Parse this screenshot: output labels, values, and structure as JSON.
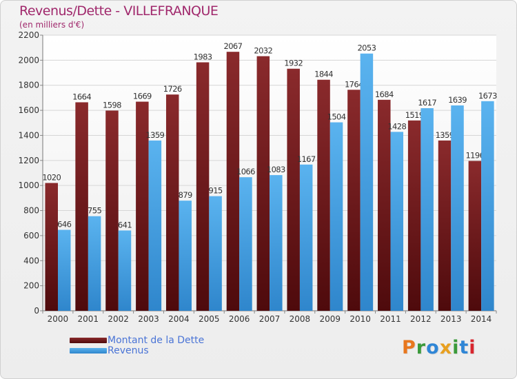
{
  "title": "Revenus/Dette - VILLEFRANQUE",
  "subtitle": "(en milliers d'€)",
  "chart_data": {
    "type": "bar",
    "categories": [
      "2000",
      "2001",
      "2002",
      "2003",
      "2004",
      "2005",
      "2006",
      "2007",
      "2008",
      "2009",
      "2010",
      "2011",
      "2012",
      "2013",
      "2014"
    ],
    "series": [
      {
        "name": "Montant de la Dette",
        "values": [
          1020,
          1664,
          1598,
          1669,
          1726,
          1983,
          2067,
          2032,
          1932,
          1844,
          1764,
          1684,
          1519,
          1359,
          1196
        ],
        "color": "#7a1d1f"
      },
      {
        "name": "Revenus",
        "values": [
          646,
          755,
          641,
          1359,
          879,
          915,
          1066,
          1083,
          1167,
          1504,
          2053,
          1428,
          1617,
          1639,
          1673
        ],
        "color": "#4ea8e6"
      }
    ],
    "yticks": [
      0,
      200,
      400,
      600,
      800,
      1000,
      1200,
      1400,
      1600,
      1800,
      2000,
      2200
    ],
    "ylim": [
      0,
      2200
    ],
    "grid": true
  },
  "logo": {
    "letters": [
      {
        "ch": "P",
        "color": "#e8771e"
      },
      {
        "ch": "r",
        "color": "#3a9a3a"
      },
      {
        "ch": "o",
        "color": "#2f86d6"
      },
      {
        "ch": "x",
        "color": "#e8a020"
      },
      {
        "ch": "i",
        "color": "#3a9a3a"
      },
      {
        "ch": "t",
        "color": "#2f86d6"
      },
      {
        "ch": "i",
        "color": "#d8262e"
      }
    ]
  }
}
